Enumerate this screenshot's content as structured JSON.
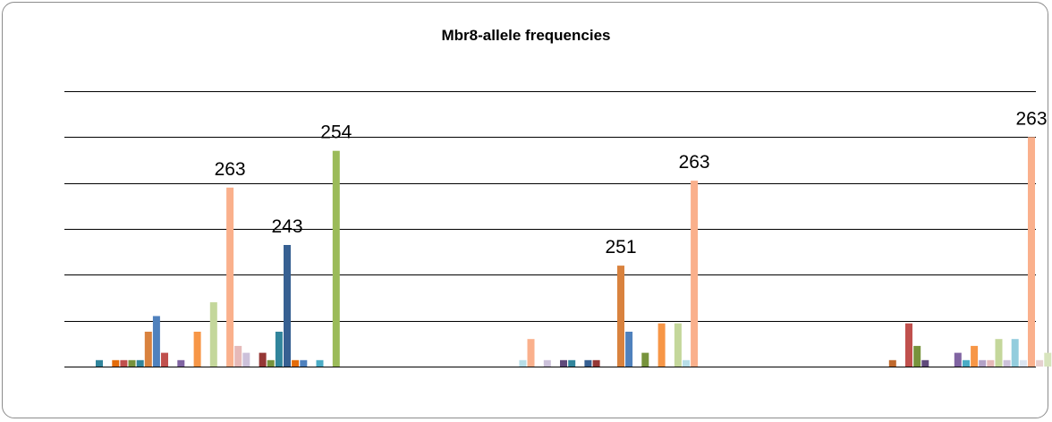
{
  "chart_data": {
    "type": "bar",
    "title": "Mbr8-allele frequencies",
    "xlabel": "",
    "ylabel": "",
    "ylim": [
      0,
      6
    ],
    "grid": true,
    "legend": "none",
    "groups": [
      {
        "bars": [
          {
            "value": 0.14,
            "color": "#31859c"
          },
          {
            "value": 0,
            "color": "#4f81bd"
          },
          {
            "value": 0.14,
            "color": "#e46c0a"
          },
          {
            "value": 0.14,
            "color": "#c0504d"
          },
          {
            "value": 0.14,
            "color": "#77933c"
          },
          {
            "value": 0.14,
            "color": "#31859c"
          },
          {
            "value": 0.76,
            "color": "#d9823e"
          },
          {
            "value": 1.1,
            "color": "#4f81bd"
          },
          {
            "value": 0.3,
            "color": "#c0504d"
          },
          {
            "value": 0,
            "color": "#9bbb59"
          },
          {
            "value": 0.14,
            "color": "#8064a2"
          },
          {
            "value": 0,
            "color": "#4bacc6"
          },
          {
            "value": 0.76,
            "color": "#f79646"
          },
          {
            "value": 0,
            "color": "#95b3d7"
          },
          {
            "value": 1.4,
            "color": "#c4d79b"
          },
          {
            "value": 0,
            "color": "#b3a2c7"
          },
          {
            "value": 3.9,
            "color": "#fab08c",
            "label": "263"
          },
          {
            "value": 0.45,
            "color": "#e6b9b8"
          },
          {
            "value": 0.3,
            "color": "#ccc1da"
          },
          {
            "value": 0,
            "color": "#b7dee8"
          },
          {
            "value": 0.3,
            "color": "#953735"
          },
          {
            "value": 0.14,
            "color": "#77933c"
          },
          {
            "value": 0.76,
            "color": "#31859c"
          },
          {
            "value": 2.65,
            "color": "#376092",
            "label": "243"
          },
          {
            "value": 0.14,
            "color": "#e46c0a"
          },
          {
            "value": 0.14,
            "color": "#4f81bd"
          },
          {
            "value": 0,
            "color": "#c0504d"
          },
          {
            "value": 0.14,
            "color": "#4bacc6"
          },
          {
            "value": 0,
            "color": "#8064a2"
          },
          {
            "value": 4.7,
            "color": "#9bbb59",
            "label": "254"
          }
        ]
      },
      {
        "bars": [
          {
            "value": 0,
            "color": "#31859c"
          },
          {
            "value": 0,
            "color": "#4f81bd"
          },
          {
            "value": 0,
            "color": "#e46c0a"
          },
          {
            "value": 0.14,
            "color": "#b7dee8"
          },
          {
            "value": 0.6,
            "color": "#fab08c"
          },
          {
            "value": 0,
            "color": "#e6b9b8"
          },
          {
            "value": 0.14,
            "color": "#ccc1da"
          },
          {
            "value": 0,
            "color": "#c0504d"
          },
          {
            "value": 0.14,
            "color": "#604a7b"
          },
          {
            "value": 0.14,
            "color": "#31859c"
          },
          {
            "value": 0,
            "color": "#77933c"
          },
          {
            "value": 0.14,
            "color": "#376092"
          },
          {
            "value": 0.14,
            "color": "#953735"
          },
          {
            "value": 0,
            "color": "#4bacc6"
          },
          {
            "value": 0,
            "color": "#8064a2"
          },
          {
            "value": 2.2,
            "color": "#d9823e",
            "label": "251"
          },
          {
            "value": 0.76,
            "color": "#4f81bd"
          },
          {
            "value": 0,
            "color": "#c0504d"
          },
          {
            "value": 0.3,
            "color": "#77933c"
          },
          {
            "value": 0,
            "color": "#8064a2"
          },
          {
            "value": 0.94,
            "color": "#f79646"
          },
          {
            "value": 0,
            "color": "#95b3d7"
          },
          {
            "value": 0.94,
            "color": "#c4d79b"
          },
          {
            "value": 0.14,
            "color": "#b7dee8"
          },
          {
            "value": 4.05,
            "color": "#fab08c",
            "label": "263"
          }
        ]
      },
      {
        "bars": [
          {
            "value": 0,
            "color": "#31859c"
          },
          {
            "value": 0,
            "color": "#4f81bd"
          },
          {
            "value": 0,
            "color": "#77933c"
          },
          {
            "value": 0,
            "color": "#8064a2"
          },
          {
            "value": 0,
            "color": "#4bacc6"
          },
          {
            "value": 0,
            "color": "#f79646"
          },
          {
            "value": 0.14,
            "color": "#c0692d"
          },
          {
            "value": 0,
            "color": "#4f81bd"
          },
          {
            "value": 0.94,
            "color": "#c0504d"
          },
          {
            "value": 0.45,
            "color": "#77933c"
          },
          {
            "value": 0.14,
            "color": "#604a7b"
          },
          {
            "value": 0,
            "color": "#31859c"
          },
          {
            "value": 0,
            "color": "#4f81bd"
          },
          {
            "value": 0,
            "color": "#c0504d"
          },
          {
            "value": 0.3,
            "color": "#8064a2"
          },
          {
            "value": 0.14,
            "color": "#4bacc6"
          },
          {
            "value": 0.45,
            "color": "#f79646"
          },
          {
            "value": 0.14,
            "color": "#b3a2c7"
          },
          {
            "value": 0.14,
            "color": "#e6b9b8"
          },
          {
            "value": 0.6,
            "color": "#c4d79b"
          },
          {
            "value": 0.14,
            "color": "#ccc1da"
          },
          {
            "value": 0.6,
            "color": "#93cddd"
          },
          {
            "value": 0.14,
            "color": "#dbe5f1"
          },
          {
            "value": 5.0,
            "color": "#fab08c",
            "label": "263"
          },
          {
            "value": 0.14,
            "color": "#e6d0d0"
          },
          {
            "value": 0.3,
            "color": "#d7e4bd"
          }
        ]
      }
    ]
  }
}
